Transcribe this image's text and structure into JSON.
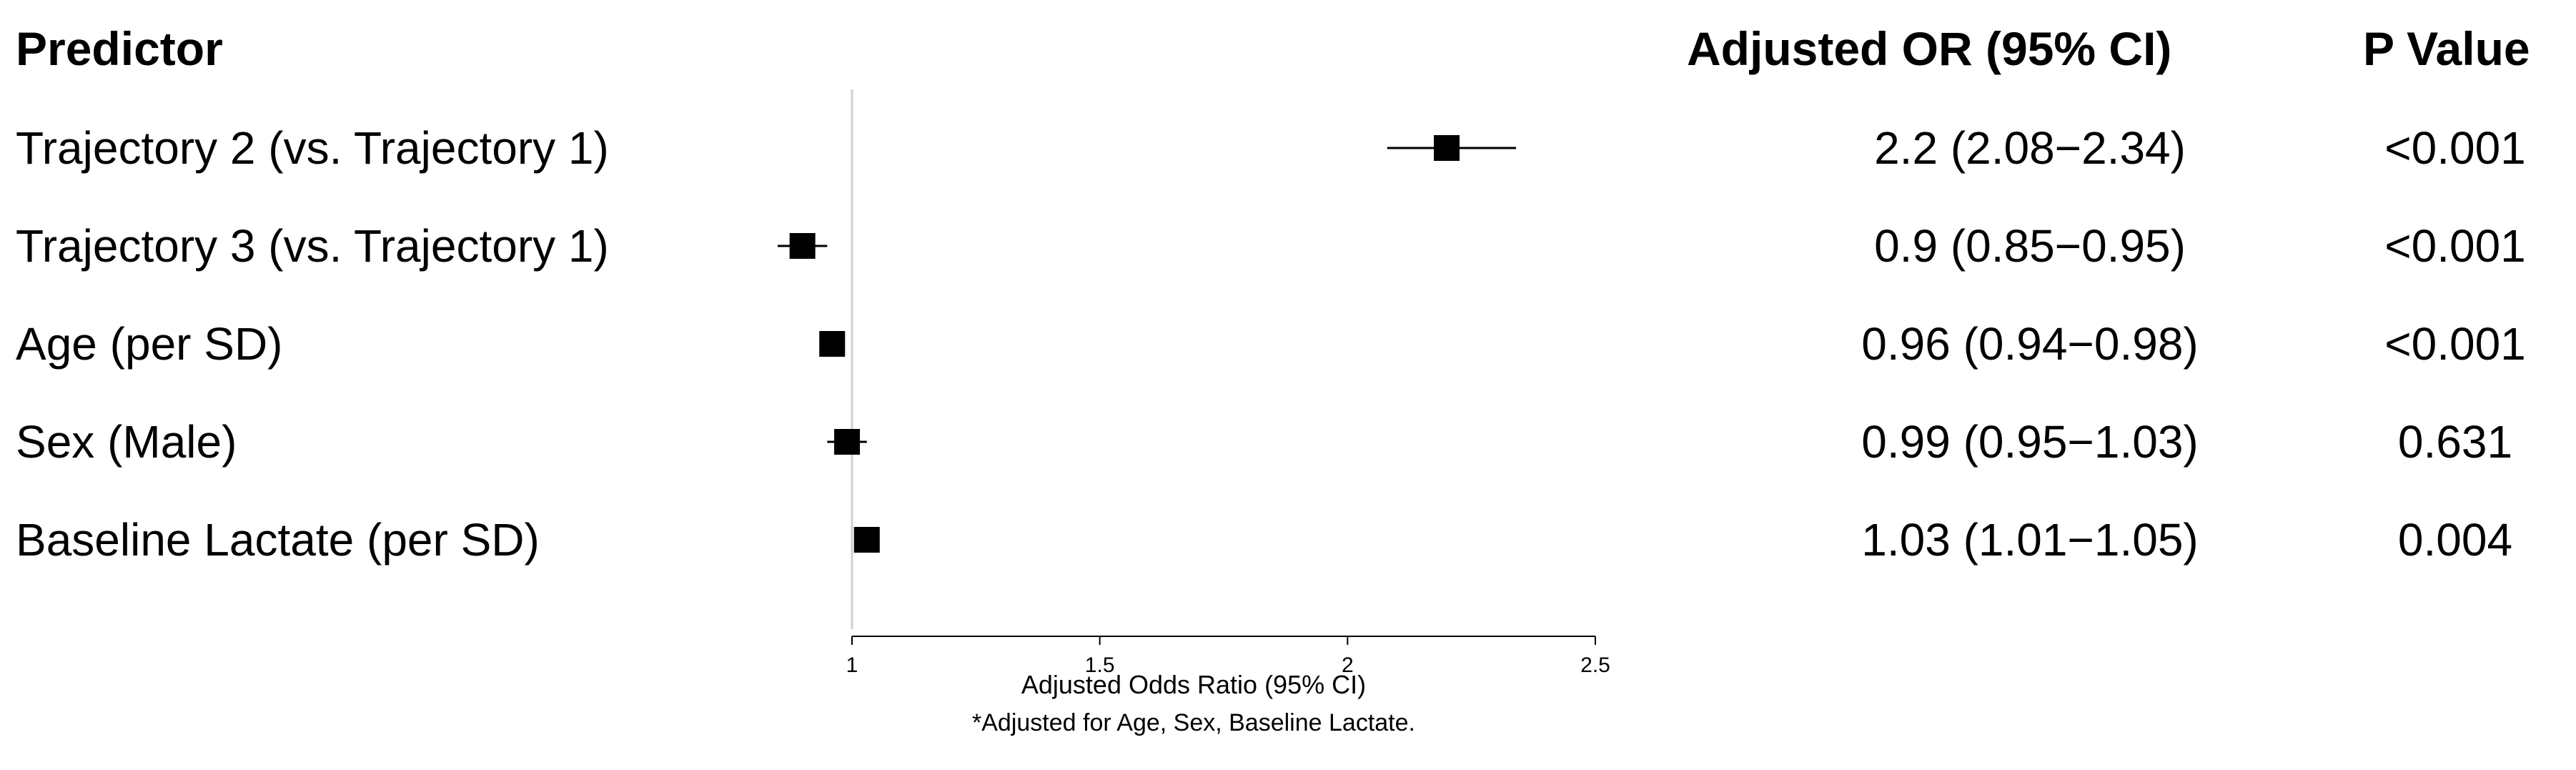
{
  "headers": {
    "predictor": "Predictor",
    "or": "Adjusted OR (95% CI)",
    "p": "P Value"
  },
  "chart_data": {
    "type": "forest",
    "reference_line": 1,
    "xlim": [
      0.9,
      2.5
    ],
    "x_ticks": [
      1,
      1.5,
      2,
      2.5
    ],
    "x_tick_labels": [
      "1",
      "1.5",
      "2",
      "2.5"
    ],
    "xlabel": "Adjusted Odds Ratio (95% CI)",
    "rows": [
      {
        "predictor": "Trajectory 2 (vs. Trajectory 1)",
        "or": 2.2,
        "lo": 2.08,
        "hi": 2.34,
        "or_text": "2.2 (2.08−2.34)",
        "p": "<0.001"
      },
      {
        "predictor": "Trajectory 3 (vs. Trajectory 1)",
        "or": 0.9,
        "lo": 0.85,
        "hi": 0.95,
        "or_text": "0.9 (0.85−0.95)",
        "p": "<0.001"
      },
      {
        "predictor": "Age (per SD)",
        "or": 0.96,
        "lo": 0.94,
        "hi": 0.98,
        "or_text": "0.96 (0.94−0.98)",
        "p": "<0.001"
      },
      {
        "predictor": "Sex (Male)",
        "or": 0.99,
        "lo": 0.95,
        "hi": 1.03,
        "or_text": "0.99 (0.95−1.03)",
        "p": "0.631"
      },
      {
        "predictor": "Baseline Lactate (per SD)",
        "or": 1.03,
        "lo": 1.01,
        "hi": 1.05,
        "or_text": "1.03 (1.01−1.05)",
        "p": "0.004"
      }
    ]
  },
  "footnote": "*Adjusted for Age, Sex, Baseline Lactate."
}
